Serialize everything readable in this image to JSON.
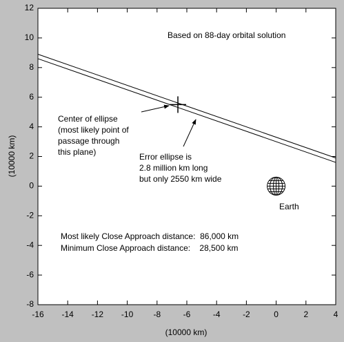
{
  "chart_data": {
    "type": "line",
    "x_label": "(10000 km)",
    "y_label": "(10000 km)",
    "xlim": [
      -16,
      4
    ],
    "xticks": [
      -16,
      -14,
      -12,
      -10,
      -8,
      -6,
      -4,
      -2,
      0,
      2,
      4
    ],
    "ylim": [
      -8,
      12
    ],
    "yticks": [
      -8,
      -6,
      -4,
      -2,
      0,
      2,
      4,
      6,
      8,
      10,
      12
    ],
    "x": [
      -16,
      4
    ],
    "series": [
      {
        "color": "#000000",
        "values": [
          8.9,
          1.9
        ]
      },
      {
        "color": "#000000",
        "values": [
          8.6,
          1.6
        ]
      }
    ],
    "points": [
      {
        "x": -6.6,
        "y": 5.5,
        "marker": "+"
      },
      {
        "x": 0,
        "y": 0,
        "marker": "globe"
      }
    ],
    "annotations": [
      [
        "Based on 88-day orbital solution"
      ],
      [
        "Center of ellipse",
        "(most likely point of",
        "passage through",
        "this plane)"
      ],
      [
        "Error ellipse is",
        "2.8 million km long",
        "but only 2550 km wide"
      ],
      [
        "Earth"
      ],
      [
        "Most likely Close Approach distance:  86,000 km",
        "Minimum Close Approach distance:    28,500 km"
      ]
    ]
  }
}
